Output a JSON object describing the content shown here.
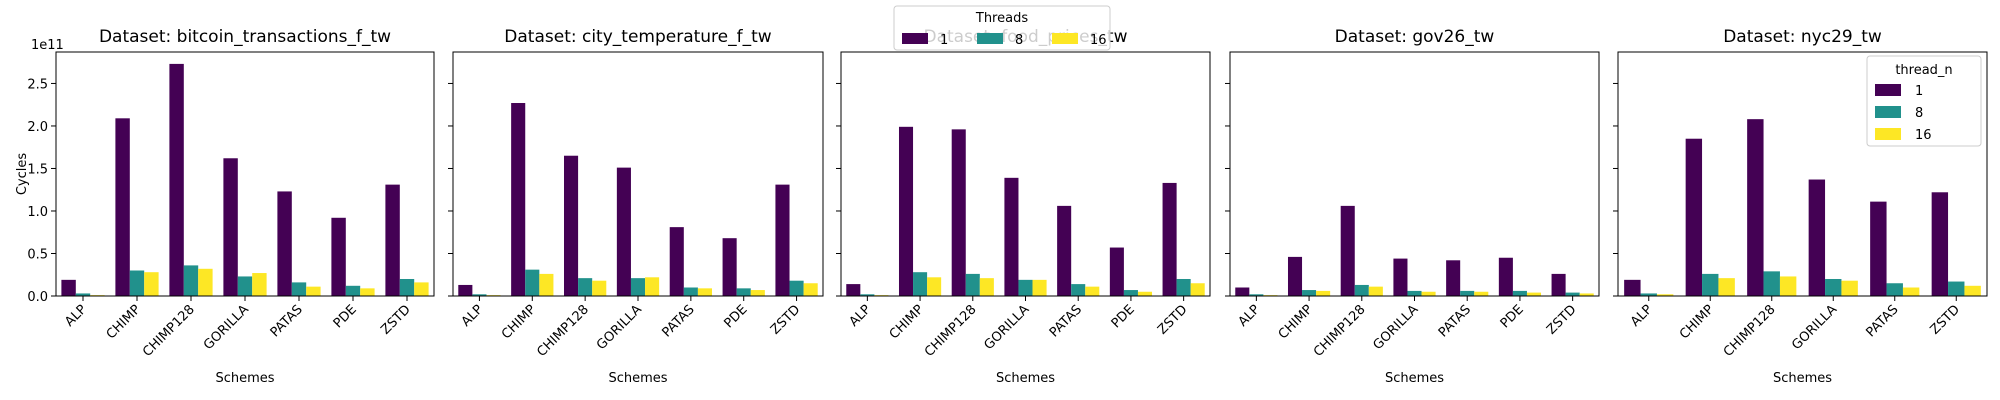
{
  "legend": {
    "title": "Threads"
  },
  "chart_data": [
    {
      "type": "bar",
      "title": "Dataset: bitcoin_transactions_f_tw",
      "x_label": "Schemes",
      "y_label": "Cycles",
      "y_offset_label": "1e11",
      "ylim": [
        0,
        2.87
      ],
      "yticks": [
        {
          "value": 0,
          "label": "0.0"
        },
        {
          "value": 0.5,
          "label": "0.5"
        },
        {
          "value": 1,
          "label": "1.0"
        },
        {
          "value": 1.5,
          "label": "1.5"
        },
        {
          "value": 2,
          "label": "2.0"
        },
        {
          "value": 2.5,
          "label": "2.5"
        }
      ],
      "categories": [
        "ALP",
        "CHIMP",
        "CHIMP128",
        "GORILLA",
        "PATAS",
        "PDE",
        "ZSTD"
      ],
      "series": [
        {
          "name": "1",
          "color": "#440154",
          "values": [
            0.19,
            2.09,
            2.73,
            1.62,
            1.23,
            0.92,
            1.31
          ]
        },
        {
          "name": "8",
          "color": "#21918c",
          "values": [
            0.03,
            0.3,
            0.36,
            0.23,
            0.16,
            0.12,
            0.2
          ]
        },
        {
          "name": "16",
          "color": "#fde725",
          "values": [
            0.01,
            0.28,
            0.32,
            0.27,
            0.11,
            0.09,
            0.16
          ]
        }
      ]
    },
    {
      "type": "bar",
      "title": "Dataset: city_temperature_f_tw",
      "x_label": "Schemes",
      "categories": [
        "ALP",
        "CHIMP",
        "CHIMP128",
        "GORILLA",
        "PATAS",
        "PDE",
        "ZSTD"
      ],
      "series": [
        {
          "name": "1",
          "color": "#440154",
          "values": [
            0.13,
            2.27,
            1.65,
            1.51,
            0.81,
            0.68,
            1.31
          ]
        },
        {
          "name": "8",
          "color": "#21918c",
          "values": [
            0.02,
            0.31,
            0.21,
            0.21,
            0.1,
            0.09,
            0.18
          ]
        },
        {
          "name": "16",
          "color": "#fde725",
          "values": [
            0.01,
            0.26,
            0.18,
            0.22,
            0.09,
            0.07,
            0.15
          ]
        }
      ]
    },
    {
      "type": "bar",
      "title": "Dataset: food_prices_tw",
      "x_label": "Schemes",
      "categories": [
        "ALP",
        "CHIMP",
        "CHIMP128",
        "GORILLA",
        "PATAS",
        "PDE",
        "ZSTD"
      ],
      "series": [
        {
          "name": "1",
          "color": "#440154",
          "values": [
            0.14,
            1.99,
            1.96,
            1.39,
            1.06,
            0.57,
            1.33
          ]
        },
        {
          "name": "8",
          "color": "#21918c",
          "values": [
            0.02,
            0.28,
            0.26,
            0.19,
            0.14,
            0.07,
            0.2
          ]
        },
        {
          "name": "16",
          "color": "#fde725",
          "values": [
            0.01,
            0.22,
            0.21,
            0.19,
            0.11,
            0.05,
            0.15
          ]
        }
      ]
    },
    {
      "type": "bar",
      "title": "Dataset: gov26_tw",
      "x_label": "Schemes",
      "categories": [
        "ALP",
        "CHIMP",
        "CHIMP128",
        "GORILLA",
        "PATAS",
        "PDE",
        "ZSTD"
      ],
      "series": [
        {
          "name": "1",
          "color": "#440154",
          "values": [
            0.1,
            0.46,
            1.06,
            0.44,
            0.42,
            0.45,
            0.26
          ]
        },
        {
          "name": "8",
          "color": "#21918c",
          "values": [
            0.02,
            0.07,
            0.13,
            0.06,
            0.06,
            0.06,
            0.04
          ]
        },
        {
          "name": "16",
          "color": "#fde725",
          "values": [
            0.01,
            0.06,
            0.11,
            0.05,
            0.05,
            0.04,
            0.03
          ]
        }
      ]
    },
    {
      "type": "bar",
      "title": "Dataset: nyc29_tw",
      "x_label": "Schemes",
      "legend_title": "thread_n",
      "categories": [
        "ALP",
        "CHIMP",
        "CHIMP128",
        "GORILLA",
        "PATAS",
        "ZSTD"
      ],
      "series": [
        {
          "name": "1",
          "color": "#440154",
          "values": [
            0.19,
            1.85,
            2.08,
            1.37,
            1.11,
            1.22
          ]
        },
        {
          "name": "8",
          "color": "#21918c",
          "values": [
            0.03,
            0.26,
            0.29,
            0.2,
            0.15,
            0.17
          ]
        },
        {
          "name": "16",
          "color": "#fde725",
          "values": [
            0.02,
            0.21,
            0.23,
            0.18,
            0.1,
            0.12
          ]
        }
      ]
    }
  ]
}
